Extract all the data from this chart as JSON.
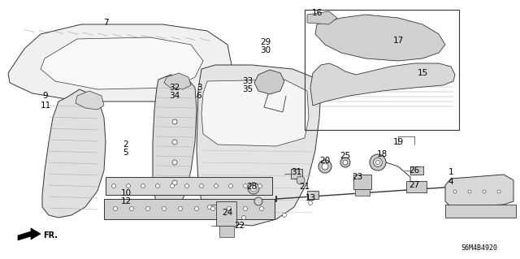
{
  "bg_color": "#ffffff",
  "diagram_code": "S6M4B4920",
  "lc": "#333333",
  "fc": "#e8e8e8",
  "fc2": "#f2f2f2",
  "labels": [
    [
      130,
      28,
      "7"
    ],
    [
      56,
      118,
      "9"
    ],
    [
      56,
      130,
      "11"
    ],
    [
      155,
      178,
      "2"
    ],
    [
      155,
      188,
      "5"
    ],
    [
      155,
      238,
      "10"
    ],
    [
      155,
      248,
      "12"
    ],
    [
      215,
      108,
      "32"
    ],
    [
      215,
      118,
      "34"
    ],
    [
      245,
      108,
      "3"
    ],
    [
      245,
      118,
      "6"
    ],
    [
      305,
      100,
      "33"
    ],
    [
      305,
      110,
      "35"
    ],
    [
      327,
      52,
      "29"
    ],
    [
      327,
      62,
      "30"
    ],
    [
      390,
      16,
      "16"
    ],
    [
      490,
      50,
      "17"
    ],
    [
      520,
      90,
      "15"
    ],
    [
      490,
      175,
      "19"
    ],
    [
      400,
      198,
      "20"
    ],
    [
      425,
      192,
      "25"
    ],
    [
      470,
      190,
      "18"
    ],
    [
      365,
      212,
      "31"
    ],
    [
      375,
      230,
      "21"
    ],
    [
      382,
      244,
      "13"
    ],
    [
      440,
      218,
      "23"
    ],
    [
      510,
      210,
      "26"
    ],
    [
      510,
      228,
      "27"
    ],
    [
      310,
      230,
      "28"
    ],
    [
      280,
      262,
      "24"
    ],
    [
      295,
      278,
      "22"
    ],
    [
      555,
      212,
      "1"
    ],
    [
      555,
      224,
      "4"
    ]
  ]
}
